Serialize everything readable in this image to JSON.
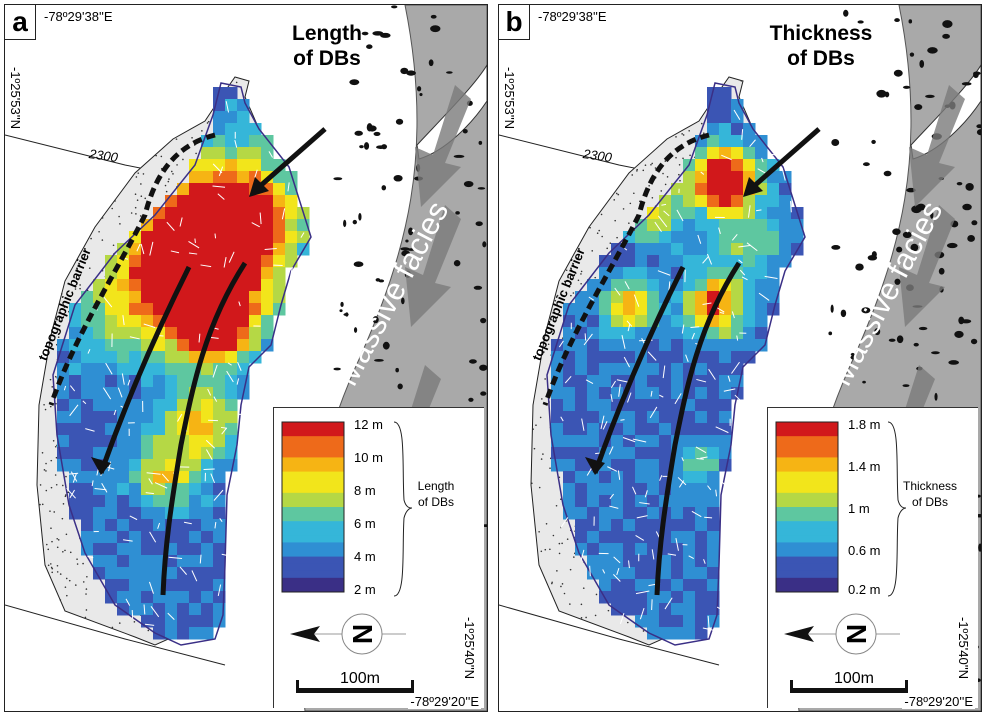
{
  "colors": {
    "stipple_background": "#e9e9e9",
    "massive_facies_band": "#a9a9a9",
    "flow_arrow_fill": "#7a7a7a",
    "colorscale": [
      "#3a2f86",
      "#3b55b4",
      "#2f8fd3",
      "#35b6d9",
      "#5ec7a0",
      "#b5d845",
      "#f2e51b",
      "#f6b414",
      "#ee6a1a",
      "#d1181b"
    ]
  },
  "panels": [
    {
      "letter": "a",
      "title_line1": "Length",
      "title_line2": "of DBs",
      "coord_top_left": "-78º29'38''E",
      "coord_left": "-1º25'53''N",
      "coord_right": "-1º25'40''N",
      "coord_bottom_right": "-78º29'20''E",
      "contour_label": "2300",
      "barrier_label": "topographic barrier",
      "facies_label": "Massive facies",
      "north_label": "N",
      "scale_label": "100m",
      "legend_ticks": [
        "12 m",
        "10 m",
        "8 m",
        "6 m",
        "4 m",
        "2 m"
      ],
      "legend_title_line1": "Length",
      "legend_title_line2": "of DBs"
    },
    {
      "letter": "b",
      "title_line1": "Thickness",
      "title_line2": "of DBs",
      "coord_top_left": "-78º29'38''E",
      "coord_left": "-1º25'53''N",
      "coord_right": "-1º25'40''N",
      "coord_bottom_right": "-78º29'20''E",
      "contour_label": "2300",
      "barrier_label": "topographic barrier",
      "facies_label": "Massive facies",
      "north_label": "N",
      "scale_label": "100m",
      "legend_ticks": [
        "1.8 m",
        "1.4 m",
        "1 m",
        "0.6 m",
        "0.2 m"
      ],
      "legend_title_line1": "Thickness",
      "legend_title_line2": "of DBs"
    }
  ]
}
